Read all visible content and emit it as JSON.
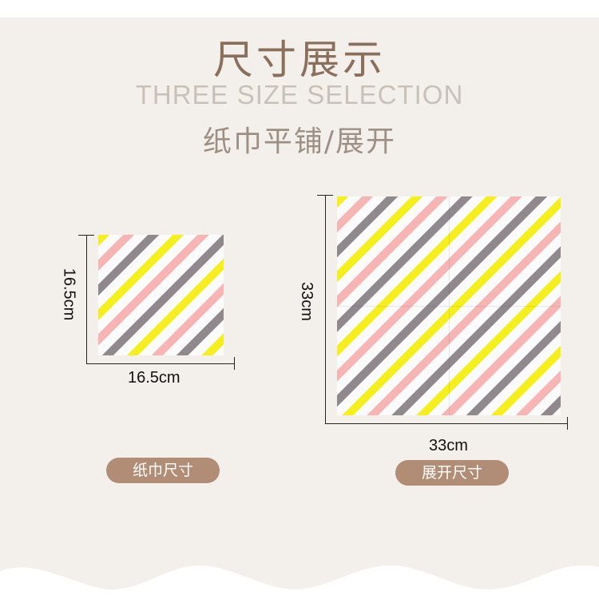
{
  "title": "尺寸展示",
  "subtitle": "THREE SIZE SELECTION",
  "caption": "纸巾平铺/展开",
  "small_napkin": {
    "width_label": "16.5cm",
    "height_label": "16.5cm",
    "badge": "纸巾尺寸"
  },
  "unfolded_napkin": {
    "width_label": "33cm",
    "height_label": "33cm",
    "badge": "展开尺寸"
  },
  "colors": {
    "background": "#f3f0eb",
    "title": "#8a6f5c",
    "badge": "#b08d74",
    "stripe_yellow": "#f5ef1e",
    "stripe_pink": "#f6b5b3",
    "stripe_gray": "#8f898d"
  }
}
